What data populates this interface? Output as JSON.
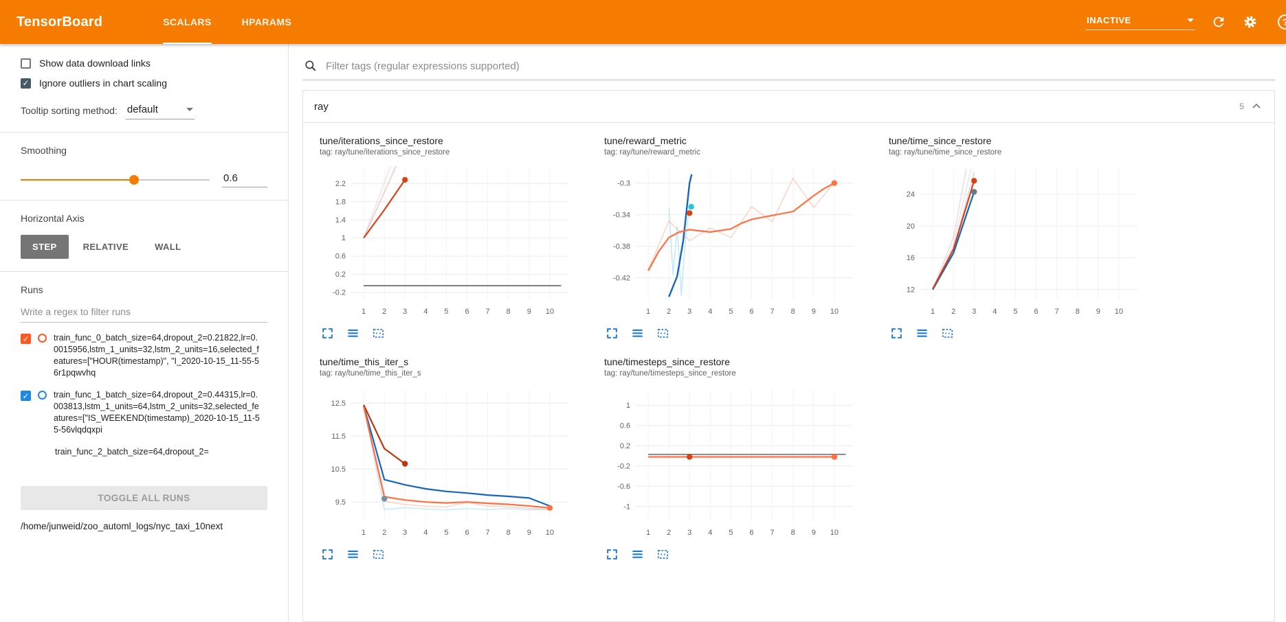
{
  "header": {
    "title": "TensorBoard",
    "tabs": [
      {
        "label": "SCALARS",
        "active": true
      },
      {
        "label": "HPARAMS",
        "active": false
      }
    ],
    "status_dropdown": "INACTIVE"
  },
  "sidebar": {
    "show_data_download_links": {
      "label": "Show data download links",
      "checked": false
    },
    "ignore_outliers": {
      "label": "Ignore outliers in chart scaling",
      "checked": true
    },
    "tooltip_sorting": {
      "label": "Tooltip sorting method:",
      "value": "default"
    },
    "smoothing": {
      "label": "Smoothing",
      "value": "0.6"
    },
    "horizontal_axis": {
      "label": "Horizontal Axis",
      "options": [
        "STEP",
        "RELATIVE",
        "WALL"
      ],
      "selected": "STEP"
    },
    "runs": {
      "label": "Runs",
      "filter_placeholder": "Write a regex to filter runs",
      "items": [
        {
          "name": "train_func_0_batch_size=64,dropout_2=0.21822,lr=0.0015956,lstm_1_units=32,lstm_2_units=16,selected_features=[\"HOUR(timestamp)\", \"I_2020-10-15_11-55-56r1pqwvhq",
          "checked": true,
          "color": "#ff5722"
        },
        {
          "name": "train_func_1_batch_size=64,dropout_2=0.44315,lr=0.003813,lstm_1_units=64,lstm_2_units=32,selected_features=[\"IS_WEEKEND(timestamp)_2020-10-15_11-55-56vlqdqxpi",
          "checked": true,
          "color": "#1e88e5"
        },
        {
          "name": "train_func_2_batch_size=64,dropout_2="
        }
      ],
      "toggle_all_label": "TOGGLE ALL RUNS",
      "log_dir": "/home/junweid/zoo_automl_logs/nyc_taxi_10next"
    }
  },
  "main": {
    "filter_placeholder": "Filter tags (regular expressions supported)",
    "card": {
      "title": "ray",
      "count": "5"
    }
  },
  "colors": {
    "header": "#f57c00",
    "run0": "#ff5722",
    "run1": "#1e88e5",
    "chart_icon": "#1976d2"
  },
  "chart_data": [
    {
      "type": "line",
      "title": "tune/iterations_since_restore",
      "tag": "tag: ray/tune/iterations_since_restore",
      "xlim": [
        0.4,
        10.9
      ],
      "ylim": [
        -0.38,
        2.52
      ],
      "xticks": [
        1,
        2,
        3,
        4,
        5,
        6,
        7,
        8,
        9,
        10
      ],
      "yticks": [
        -0.2,
        0.2,
        0.6,
        1,
        1.4,
        1.8,
        2.2
      ],
      "series": [
        {
          "name": "run_0 raw",
          "color": "#ff8a65",
          "opacity": 0.35,
          "width": 1.5,
          "points": [
            [
              1,
              1
            ],
            [
              2,
              2
            ],
            [
              3,
              3
            ]
          ]
        },
        {
          "name": "raw b",
          "color": "#ef9a9a",
          "opacity": 0.3,
          "width": 1.5,
          "points": [
            [
              1,
              1
            ],
            [
              2.6,
              2.95
            ]
          ]
        },
        {
          "name": "raw c",
          "color": "#90caf9",
          "opacity": 0.3,
          "width": 1.5,
          "points": [
            [
              1,
              1
            ],
            [
              2.9,
              2.95
            ]
          ]
        },
        {
          "name": "zero baseline",
          "color": "#616161",
          "opacity": 1,
          "width": 1.6,
          "points": [
            [
              1,
              -0.05
            ],
            [
              10.55,
              -0.05
            ]
          ]
        },
        {
          "name": "run_0 smoothed",
          "color": "#d84315",
          "opacity": 1,
          "width": 2.2,
          "points": [
            [
              1,
              1
            ],
            [
              2,
              1.62
            ],
            [
              3,
              2.28
            ]
          ]
        }
      ],
      "markers": [
        {
          "x": 3,
          "y": 2.28,
          "color": "#d84315"
        }
      ]
    },
    {
      "type": "line",
      "title": "tune/reward_metric",
      "tag": "tag: ray/tune/reward_metric",
      "xlim": [
        0.4,
        10.9
      ],
      "ylim": [
        -0.449,
        -0.282
      ],
      "xticks": [
        1,
        2,
        3,
        4,
        5,
        6,
        7,
        8,
        9,
        10
      ],
      "yticks": [
        -0.42,
        -0.38,
        -0.34,
        -0.3
      ],
      "series": [
        {
          "name": "run_0 raw",
          "color": "#ff7043",
          "opacity": 0.3,
          "width": 1.5,
          "points": [
            [
              1,
              -0.41
            ],
            [
              2,
              -0.348
            ],
            [
              3,
              -0.373
            ],
            [
              4,
              -0.357
            ],
            [
              5,
              -0.369
            ],
            [
              6,
              -0.33
            ],
            [
              7,
              -0.349
            ],
            [
              8,
              -0.294
            ],
            [
              9,
              -0.331
            ],
            [
              10,
              -0.299
            ]
          ]
        },
        {
          "name": "run_1 raw",
          "color": "#81d4fa",
          "opacity": 0.5,
          "width": 1.5,
          "points": [
            [
              2,
              -0.332
            ],
            [
              2.2,
              -0.416
            ],
            [
              2.4,
              -0.355
            ],
            [
              2.6,
              -0.442
            ],
            [
              2.8,
              -0.372
            ],
            [
              3,
              -0.327
            ]
          ]
        },
        {
          "name": "run_1 smoothed",
          "color": "#1565c0",
          "opacity": 1,
          "width": 2.4,
          "points": [
            [
              2,
              -0.444
            ],
            [
              2.4,
              -0.418
            ],
            [
              2.7,
              -0.372
            ],
            [
              3,
              -0.3
            ],
            [
              3.1,
              -0.289
            ]
          ]
        },
        {
          "name": "run_0 smoothed",
          "color": "#ff7043",
          "opacity": 1,
          "width": 2.2,
          "points": [
            [
              1,
              -0.411
            ],
            [
              1.5,
              -0.387
            ],
            [
              2,
              -0.369
            ],
            [
              2.5,
              -0.362
            ],
            [
              3,
              -0.359
            ],
            [
              4,
              -0.362
            ],
            [
              5,
              -0.358
            ],
            [
              5.5,
              -0.351
            ],
            [
              6,
              -0.346
            ],
            [
              7,
              -0.341
            ],
            [
              8,
              -0.336
            ],
            [
              8.5,
              -0.326
            ],
            [
              9,
              -0.316
            ],
            [
              9.5,
              -0.307
            ],
            [
              10,
              -0.3
            ]
          ]
        }
      ],
      "markers": [
        {
          "x": 3,
          "y": -0.338,
          "color": "#d84315"
        },
        {
          "x": 3.08,
          "y": -0.33,
          "color": "#26c6da"
        },
        {
          "x": 10,
          "y": -0.3,
          "color": "#ff7043"
        }
      ]
    },
    {
      "type": "line",
      "title": "tune/time_since_restore",
      "tag": "tag: ray/tune/time_since_restore",
      "xlim": [
        0.4,
        10.9
      ],
      "ylim": [
        10.6,
        27.2
      ],
      "xticks": [
        1,
        2,
        3,
        4,
        5,
        6,
        7,
        8,
        9,
        10
      ],
      "yticks": [
        12,
        16,
        20,
        24
      ],
      "series": [
        {
          "name": "raw a",
          "color": "#b39ddb",
          "opacity": 0.35,
          "width": 1.5,
          "points": [
            [
              1,
              12
            ],
            [
              2,
              18.6
            ],
            [
              2.62,
              27.2
            ]
          ]
        },
        {
          "name": "raw b",
          "color": "#ef9a9a",
          "opacity": 0.3,
          "width": 1.5,
          "points": [
            [
              1,
              12
            ],
            [
              2,
              17.8
            ],
            [
              2.85,
              27.2
            ]
          ]
        },
        {
          "name": "raw c",
          "color": "#90a4ae",
          "opacity": 0.35,
          "width": 1.5,
          "points": [
            [
              1,
              12
            ],
            [
              2,
              17.2
            ],
            [
              3,
              26.8
            ]
          ]
        },
        {
          "name": "run_1 smoothed",
          "color": "#1565c0",
          "opacity": 1,
          "width": 2.2,
          "points": [
            [
              1,
              12
            ],
            [
              2,
              16.6
            ],
            [
              3,
              24.3
            ]
          ]
        },
        {
          "name": "run_0 smoothed",
          "color": "#d84315",
          "opacity": 1,
          "width": 2.2,
          "points": [
            [
              1,
              12.1
            ],
            [
              2,
              17.1
            ],
            [
              3,
              25.7
            ]
          ]
        }
      ],
      "markers": [
        {
          "x": 3,
          "y": 24.3,
          "color": "#607d8b"
        },
        {
          "x": 3,
          "y": 25.7,
          "color": "#d84315"
        }
      ]
    },
    {
      "type": "line",
      "title": "tune/time_this_iter_s",
      "tag": "tag: ray/tune/time_this_iter_s",
      "xlim": [
        0.4,
        10.9
      ],
      "ylim": [
        8.9,
        12.9
      ],
      "xticks": [
        1,
        2,
        3,
        4,
        5,
        6,
        7,
        8,
        9,
        10
      ],
      "yticks": [
        9.5,
        10.5,
        11.5,
        12.5
      ],
      "series": [
        {
          "name": "run_1 raw",
          "color": "#81d4fa",
          "opacity": 0.45,
          "width": 1.5,
          "points": [
            [
              1,
              12.4
            ],
            [
              2,
              9.27
            ],
            [
              3,
              9.33
            ],
            [
              4,
              9.29
            ],
            [
              5,
              9.26
            ],
            [
              6,
              9.3
            ],
            [
              7,
              9.27
            ],
            [
              8,
              9.3
            ],
            [
              9,
              9.26
            ],
            [
              10,
              9.29
            ]
          ]
        },
        {
          "name": "run_0 raw",
          "color": "#ff7043",
          "opacity": 0.3,
          "width": 1.5,
          "points": [
            [
              1,
              12.4
            ],
            [
              2,
              9.52
            ],
            [
              3,
              9.42
            ],
            [
              4,
              9.37
            ],
            [
              5,
              9.35
            ],
            [
              6,
              9.49
            ],
            [
              7,
              9.37
            ],
            [
              8,
              9.35
            ],
            [
              9,
              9.3
            ],
            [
              10,
              9.27
            ]
          ]
        },
        {
          "name": "run_1 smoothed",
          "color": "#1565c0",
          "opacity": 1,
          "width": 2.2,
          "points": [
            [
              1,
              12.42
            ],
            [
              2,
              10.18
            ],
            [
              3,
              10.02
            ],
            [
              4,
              9.9
            ],
            [
              5,
              9.82
            ],
            [
              6,
              9.77
            ],
            [
              7,
              9.71
            ],
            [
              8,
              9.67
            ],
            [
              9,
              9.62
            ],
            [
              10,
              9.38
            ]
          ]
        },
        {
          "name": "run_2 smoothed",
          "color": "#bf360c",
          "opacity": 1,
          "width": 2.2,
          "points": [
            [
              1,
              12.45
            ],
            [
              2,
              11.12
            ],
            [
              3,
              10.66
            ]
          ]
        },
        {
          "name": "run_0 smoothed",
          "color": "#ff7043",
          "opacity": 1,
          "width": 2.2,
          "points": [
            [
              1,
              12.4
            ],
            [
              2,
              9.66
            ],
            [
              3,
              9.56
            ],
            [
              4,
              9.5
            ],
            [
              5,
              9.47
            ],
            [
              6,
              9.5
            ],
            [
              7,
              9.46
            ],
            [
              8,
              9.43
            ],
            [
              9,
              9.38
            ],
            [
              10,
              9.32
            ]
          ]
        }
      ],
      "markers": [
        {
          "x": 3,
          "y": 10.66,
          "color": "#bf360c"
        },
        {
          "x": 2,
          "y": 9.6,
          "color": "#78909c"
        },
        {
          "x": 10,
          "y": 9.32,
          "color": "#ff7043"
        }
      ]
    },
    {
      "type": "line",
      "title": "tune/timesteps_since_restore",
      "tag": "tag: ray/tune/timesteps_since_restore",
      "xlim": [
        0.4,
        10.9
      ],
      "ylim": [
        -1.3,
        1.3
      ],
      "xticks": [
        1,
        2,
        3,
        4,
        5,
        6,
        7,
        8,
        9,
        10
      ],
      "yticks": [
        -1,
        -0.6,
        -0.2,
        0.2,
        0.6,
        1
      ],
      "series": [
        {
          "name": "zero baseline",
          "color": "#757575",
          "opacity": 1,
          "width": 1.6,
          "points": [
            [
              1,
              0.03
            ],
            [
              10.55,
              0.03
            ]
          ]
        },
        {
          "name": "run_0 smoothed",
          "color": "#ff7043",
          "opacity": 1,
          "width": 2.2,
          "points": [
            [
              1,
              -0.02
            ],
            [
              10,
              -0.02
            ]
          ]
        }
      ],
      "markers": [
        {
          "x": 3,
          "y": -0.02,
          "color": "#d84315"
        },
        {
          "x": 10,
          "y": -0.02,
          "color": "#ff7043"
        }
      ]
    }
  ]
}
